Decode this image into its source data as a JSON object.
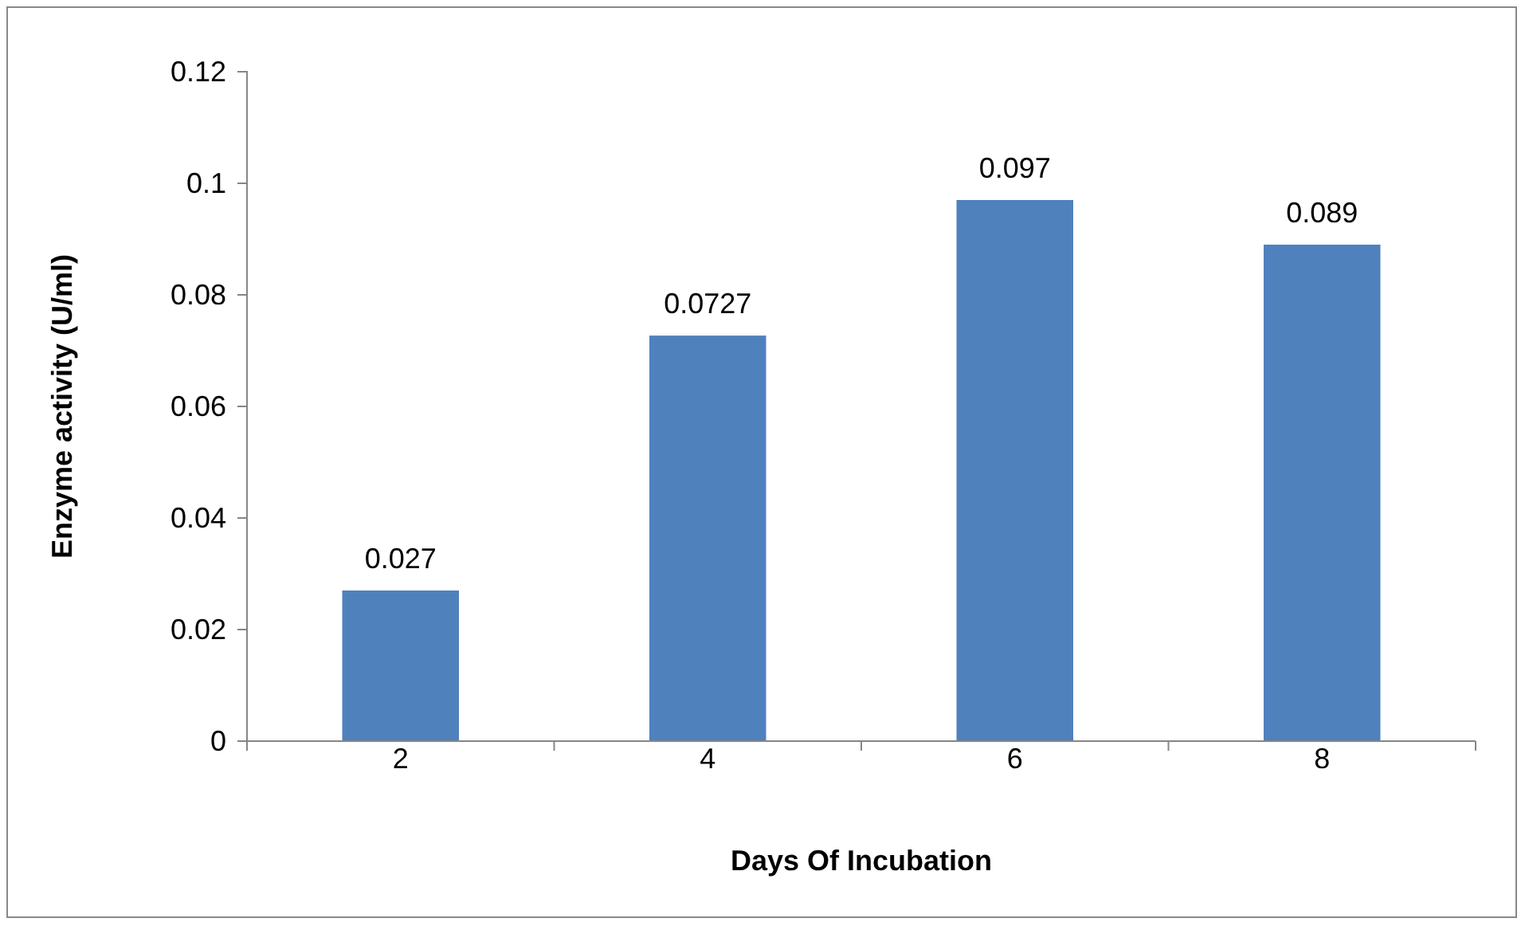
{
  "chart_data": {
    "type": "bar",
    "xlabel": "Days Of Incubation",
    "ylabel": "Enzyme activity (U/ml)",
    "categories": [
      "2",
      "4",
      "6",
      "8"
    ],
    "values": [
      0.027,
      0.0727,
      0.097,
      0.089
    ],
    "color": "#4f81bd",
    "ylim": [
      0,
      0.12
    ],
    "yticks": [
      0,
      0.02,
      0.04,
      0.06,
      0.08,
      0.1,
      0.12
    ],
    "data_labels": true,
    "grid": false
  }
}
